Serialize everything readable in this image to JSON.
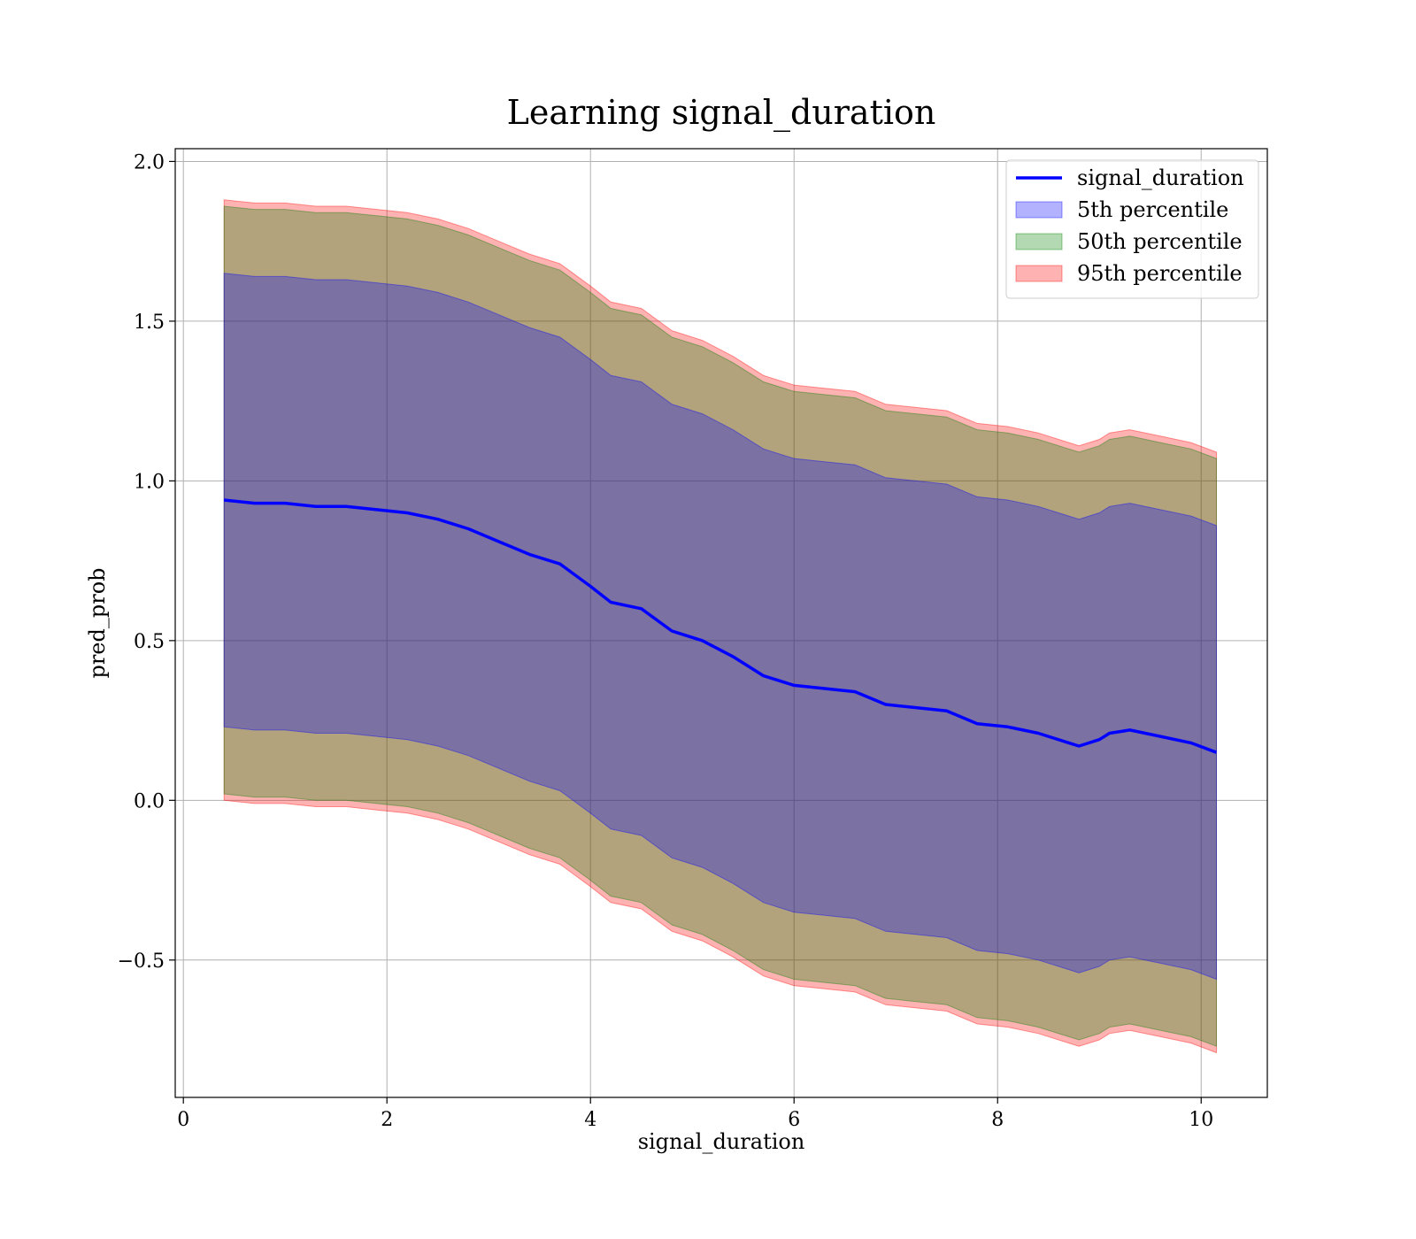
{
  "chart_data": {
    "type": "area",
    "title": "Learning signal_duration",
    "xlabel": "signal_duration",
    "ylabel": "pred_prob",
    "xlim": [
      -0.08,
      10.65
    ],
    "ylim": [
      -0.93,
      2.04
    ],
    "xticks": [
      0,
      2,
      4,
      6,
      8,
      10
    ],
    "xtick_labels": [
      "0",
      "2",
      "4",
      "6",
      "8",
      "10"
    ],
    "yticks": [
      -0.5,
      0.0,
      0.5,
      1.0,
      1.5,
      2.0
    ],
    "ytick_labels": [
      "−0.5",
      "0.0",
      "0.5",
      "1.0",
      "1.5",
      "2.0"
    ],
    "grid": true,
    "legend_position": "top-right",
    "x": [
      0.4,
      0.7,
      1.0,
      1.3,
      1.6,
      1.9,
      2.2,
      2.5,
      2.8,
      3.1,
      3.4,
      3.7,
      4.0,
      4.2,
      4.5,
      4.8,
      5.1,
      5.4,
      5.7,
      6.0,
      6.3,
      6.6,
      6.9,
      7.2,
      7.5,
      7.8,
      8.1,
      8.4,
      8.7,
      8.8,
      9.0,
      9.1,
      9.3,
      9.6,
      9.9,
      10.15
    ],
    "series": [
      {
        "name": "signal_duration",
        "kind": "line",
        "color": "#0000ff",
        "values": [
          0.94,
          0.93,
          0.93,
          0.92,
          0.92,
          0.91,
          0.9,
          0.88,
          0.85,
          0.81,
          0.77,
          0.74,
          0.67,
          0.62,
          0.6,
          0.53,
          0.5,
          0.45,
          0.39,
          0.36,
          0.35,
          0.34,
          0.3,
          0.29,
          0.28,
          0.24,
          0.23,
          0.21,
          0.18,
          0.17,
          0.19,
          0.21,
          0.22,
          0.2,
          0.18,
          0.15
        ]
      },
      {
        "name": "5th percentile",
        "kind": "band",
        "color": "#0000ff",
        "opacity": 0.3,
        "lower": [
          0.23,
          0.22,
          0.22,
          0.21,
          0.21,
          0.2,
          0.19,
          0.17,
          0.14,
          0.1,
          0.06,
          0.03,
          -0.04,
          -0.09,
          -0.11,
          -0.18,
          -0.21,
          -0.26,
          -0.32,
          -0.35,
          -0.36,
          -0.37,
          -0.41,
          -0.42,
          -0.43,
          -0.47,
          -0.48,
          -0.5,
          -0.53,
          -0.54,
          -0.52,
          -0.5,
          -0.49,
          -0.51,
          -0.53,
          -0.56
        ],
        "upper": [
          1.65,
          1.64,
          1.64,
          1.63,
          1.63,
          1.62,
          1.61,
          1.59,
          1.56,
          1.52,
          1.48,
          1.45,
          1.38,
          1.33,
          1.31,
          1.24,
          1.21,
          1.16,
          1.1,
          1.07,
          1.06,
          1.05,
          1.01,
          1.0,
          0.99,
          0.95,
          0.94,
          0.92,
          0.89,
          0.88,
          0.9,
          0.92,
          0.93,
          0.91,
          0.89,
          0.86
        ]
      },
      {
        "name": "50th percentile",
        "kind": "band",
        "color": "#008000",
        "opacity": 0.3,
        "lower": [
          0.02,
          0.01,
          0.01,
          0.0,
          0.0,
          -0.01,
          -0.02,
          -0.04,
          -0.07,
          -0.11,
          -0.15,
          -0.18,
          -0.25,
          -0.3,
          -0.32,
          -0.39,
          -0.42,
          -0.47,
          -0.53,
          -0.56,
          -0.57,
          -0.58,
          -0.62,
          -0.63,
          -0.64,
          -0.68,
          -0.69,
          -0.71,
          -0.74,
          -0.75,
          -0.73,
          -0.71,
          -0.7,
          -0.72,
          -0.74,
          -0.77
        ],
        "upper": [
          1.86,
          1.85,
          1.85,
          1.84,
          1.84,
          1.83,
          1.82,
          1.8,
          1.77,
          1.73,
          1.69,
          1.66,
          1.59,
          1.54,
          1.52,
          1.45,
          1.42,
          1.37,
          1.31,
          1.28,
          1.27,
          1.26,
          1.22,
          1.21,
          1.2,
          1.16,
          1.15,
          1.13,
          1.1,
          1.09,
          1.11,
          1.13,
          1.14,
          1.12,
          1.1,
          1.07
        ]
      },
      {
        "name": "95th percentile",
        "kind": "band",
        "color": "#ff0000",
        "opacity": 0.3,
        "lower": [
          0.0,
          -0.01,
          -0.01,
          -0.02,
          -0.02,
          -0.03,
          -0.04,
          -0.06,
          -0.09,
          -0.13,
          -0.17,
          -0.2,
          -0.27,
          -0.32,
          -0.34,
          -0.41,
          -0.44,
          -0.49,
          -0.55,
          -0.58,
          -0.59,
          -0.6,
          -0.64,
          -0.65,
          -0.66,
          -0.7,
          -0.71,
          -0.73,
          -0.76,
          -0.77,
          -0.75,
          -0.73,
          -0.72,
          -0.74,
          -0.76,
          -0.79
        ],
        "upper": [
          1.88,
          1.87,
          1.87,
          1.86,
          1.86,
          1.85,
          1.84,
          1.82,
          1.79,
          1.75,
          1.71,
          1.68,
          1.61,
          1.56,
          1.54,
          1.47,
          1.44,
          1.39,
          1.33,
          1.3,
          1.29,
          1.28,
          1.24,
          1.23,
          1.22,
          1.18,
          1.17,
          1.15,
          1.12,
          1.11,
          1.13,
          1.15,
          1.16,
          1.14,
          1.12,
          1.09
        ]
      }
    ]
  },
  "legend": {
    "entries": [
      {
        "label": "signal_duration",
        "kind": "line",
        "color": "#0000ff"
      },
      {
        "label": "5th percentile",
        "kind": "patch",
        "color": "#0000ff"
      },
      {
        "label": "50th percentile",
        "kind": "patch",
        "color": "#008000"
      },
      {
        "label": "95th percentile",
        "kind": "patch",
        "color": "#ff0000"
      }
    ]
  }
}
